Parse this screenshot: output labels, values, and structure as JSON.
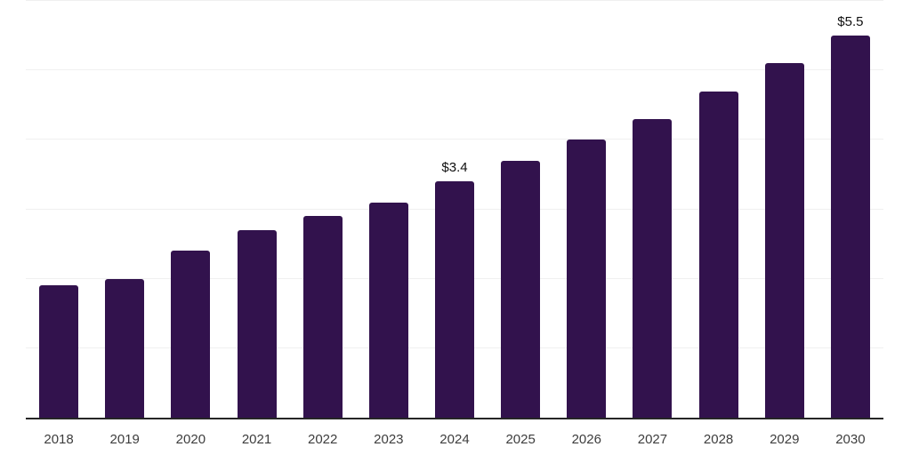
{
  "chart_data": {
    "type": "bar",
    "title": "",
    "xlabel": "",
    "ylabel": "",
    "categories": [
      "2018",
      "2019",
      "2020",
      "2021",
      "2022",
      "2023",
      "2024",
      "2025",
      "2026",
      "2027",
      "2028",
      "2029",
      "2030"
    ],
    "values": [
      1.9,
      2.0,
      2.4,
      2.7,
      2.9,
      3.1,
      3.4,
      3.7,
      4.0,
      4.3,
      4.7,
      5.1,
      5.5
    ],
    "data_labels": [
      {
        "category": "2024",
        "text": "$3.4"
      },
      {
        "category": "2030",
        "text": "$5.5"
      }
    ],
    "ylim": [
      0,
      6
    ],
    "grid_step": 1,
    "grid": true,
    "legend": false,
    "y_axis_tick_labels_visible": false
  },
  "style": {
    "background": "#ffffff",
    "bar_color": "#32124d",
    "grid_color": "#f0f0f0",
    "axis_color": "#262626",
    "tick_label_color": "#3d3d3d",
    "data_label_color": "#0f0f0f"
  }
}
